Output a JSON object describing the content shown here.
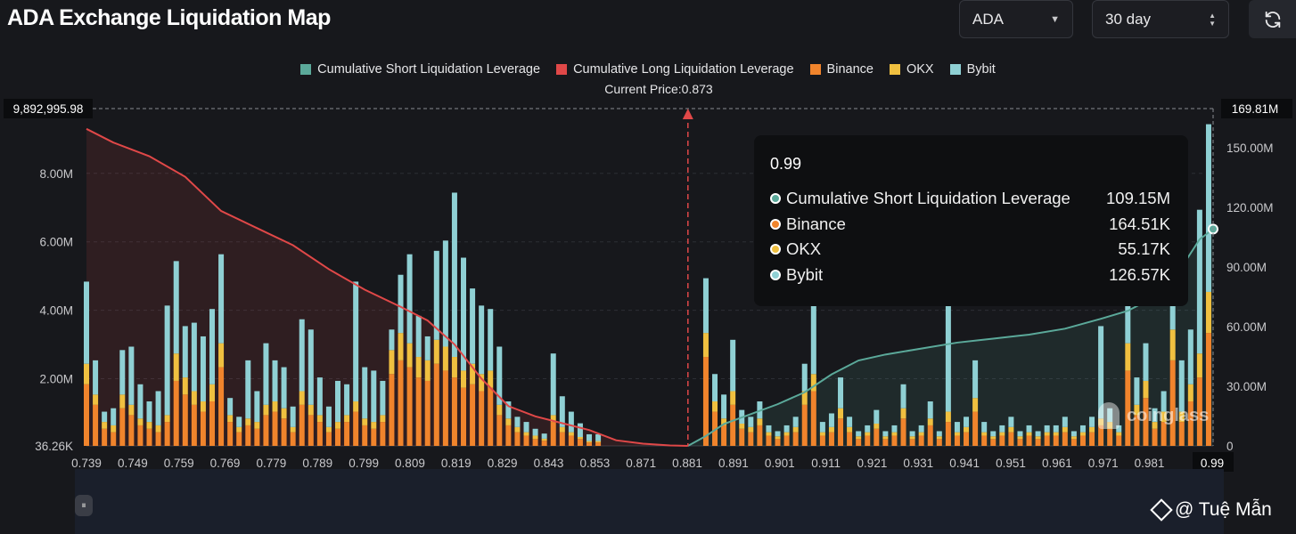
{
  "header": {
    "title": "ADA Exchange Liquidation Map",
    "coin_select": "ADA",
    "range_select": "30 day"
  },
  "credit": "@ Tuệ Mẫn",
  "watermark": "coinglass",
  "colors": {
    "short_cumulative": "#5ba99a",
    "long_cumulative": "#e04848",
    "binance": "#f0842c",
    "okx": "#f0c040",
    "bybit": "#8fd0d4"
  },
  "tooltip": {
    "title": "0.99",
    "rows": [
      {
        "label": "Cumulative Short Liquidation Leverage",
        "value": "109.15M",
        "color": "#5ba99a"
      },
      {
        "label": "Binance",
        "value": "164.51K",
        "color": "#f0842c"
      },
      {
        "label": "OKX",
        "value": "55.17K",
        "color": "#f0c040"
      },
      {
        "label": "Bybit",
        "value": "126.57K",
        "color": "#8fd0d4"
      }
    ]
  },
  "chart_data": {
    "type": "bar",
    "current_price_label": "Current Price:0.873",
    "current_price": 0.873,
    "legend": [
      {
        "name": "Cumulative Short Liquidation Leverage",
        "color": "#5ba99a"
      },
      {
        "name": "Cumulative Long Liquidation Leverage",
        "color": "#e04848"
      },
      {
        "name": "Binance",
        "color": "#f0842c"
      },
      {
        "name": "OKX",
        "color": "#f0c040"
      },
      {
        "name": "Bybit",
        "color": "#8fd0d4"
      }
    ],
    "x_tick_labels": [
      "0.739",
      "0.749",
      "0.759",
      "0.769",
      "0.779",
      "0.789",
      "0.799",
      "0.809",
      "0.819",
      "0.829",
      "0.843",
      "0.853",
      "0.871",
      "0.881",
      "0.891",
      "0.901",
      "0.911",
      "0.921",
      "0.931",
      "0.941",
      "0.951",
      "0.961",
      "0.971",
      "0.981"
    ],
    "x_end_label": "0.99",
    "x_range": [
      0.739,
      0.99
    ],
    "y_left_ticks": [
      "36.26K",
      "2.00M",
      "4.00M",
      "6.00M",
      "8.00M"
    ],
    "y_left_tick_values": [
      36260,
      2000000,
      4000000,
      6000000,
      8000000
    ],
    "y_left_max_label": "9,892,995.98",
    "y_left_range": [
      36260,
      9892995.98
    ],
    "y_right_ticks": [
      "0",
      "30.00M",
      "60.00M",
      "90.00M",
      "120.00M",
      "150.00M"
    ],
    "y_right_tick_values": [
      0,
      30000000,
      60000000,
      90000000,
      120000000,
      150000000
    ],
    "y_right_max_label": "169.81M",
    "y_right_range": [
      0,
      169810000
    ],
    "bars": {
      "x": [
        0.739,
        0.741,
        0.743,
        0.745,
        0.747,
        0.749,
        0.751,
        0.753,
        0.755,
        0.757,
        0.759,
        0.761,
        0.763,
        0.765,
        0.767,
        0.769,
        0.771,
        0.773,
        0.775,
        0.777,
        0.779,
        0.781,
        0.783,
        0.785,
        0.787,
        0.789,
        0.791,
        0.793,
        0.795,
        0.797,
        0.799,
        0.801,
        0.803,
        0.805,
        0.807,
        0.809,
        0.811,
        0.813,
        0.815,
        0.817,
        0.819,
        0.821,
        0.823,
        0.825,
        0.827,
        0.829,
        0.831,
        0.833,
        0.835,
        0.837,
        0.839,
        0.841,
        0.843,
        0.845,
        0.847,
        0.849,
        0.851,
        0.853,
        0.877,
        0.879,
        0.881,
        0.883,
        0.885,
        0.887,
        0.889,
        0.891,
        0.893,
        0.895,
        0.897,
        0.899,
        0.901,
        0.903,
        0.905,
        0.907,
        0.909,
        0.911,
        0.913,
        0.915,
        0.917,
        0.919,
        0.921,
        0.923,
        0.925,
        0.927,
        0.929,
        0.931,
        0.933,
        0.935,
        0.937,
        0.939,
        0.941,
        0.943,
        0.945,
        0.947,
        0.949,
        0.951,
        0.953,
        0.955,
        0.957,
        0.959,
        0.961,
        0.963,
        0.965,
        0.967,
        0.969,
        0.971,
        0.973,
        0.975,
        0.977,
        0.979,
        0.981,
        0.983,
        0.985,
        0.987,
        0.989
      ],
      "binance": [
        1800000,
        1200000,
        500000,
        400000,
        1100000,
        900000,
        600000,
        500000,
        400000,
        700000,
        1900000,
        1500000,
        1200000,
        1000000,
        1300000,
        2300000,
        700000,
        400000,
        600000,
        500000,
        900000,
        1000000,
        800000,
        400000,
        1200000,
        900000,
        700000,
        400000,
        500000,
        700000,
        1000000,
        600000,
        500000,
        700000,
        2100000,
        2500000,
        2300000,
        2000000,
        1900000,
        2400000,
        2200000,
        2000000,
        1700000,
        1800000,
        1600000,
        1700000,
        900000,
        600000,
        400000,
        300000,
        200000,
        150000,
        700000,
        400000,
        300000,
        200000,
        100000,
        100000,
        2600000,
        1000000,
        600000,
        1200000,
        500000,
        400000,
        600000,
        300000,
        200000,
        300000,
        400000,
        1200000,
        1600000,
        300000,
        400000,
        800000,
        400000,
        200000,
        300000,
        500000,
        200000,
        300000,
        800000,
        200000,
        300000,
        600000,
        200000,
        700000,
        300000,
        400000,
        1000000,
        300000,
        200000,
        300000,
        400000,
        200000,
        300000,
        200000,
        300000,
        300000,
        400000,
        200000,
        300000,
        400000,
        600000,
        500000,
        300000,
        2200000,
        900000,
        1400000,
        500000,
        700000,
        2500000,
        700000,
        1300000,
        2000000,
        3300000
      ],
      "okx": [
        600000,
        300000,
        200000,
        200000,
        400000,
        300000,
        200000,
        200000,
        200000,
        200000,
        800000,
        500000,
        400000,
        300000,
        500000,
        700000,
        200000,
        150000,
        200000,
        200000,
        300000,
        300000,
        300000,
        150000,
        400000,
        300000,
        200000,
        150000,
        200000,
        200000,
        300000,
        200000,
        200000,
        200000,
        700000,
        800000,
        700000,
        600000,
        600000,
        700000,
        700000,
        600000,
        500000,
        600000,
        500000,
        500000,
        300000,
        200000,
        150000,
        100000,
        100000,
        60000,
        200000,
        150000,
        100000,
        60000,
        40000,
        40000,
        700000,
        300000,
        200000,
        400000,
        150000,
        150000,
        200000,
        100000,
        80000,
        100000,
        150000,
        400000,
        500000,
        100000,
        150000,
        300000,
        150000,
        80000,
        100000,
        150000,
        80000,
        100000,
        300000,
        80000,
        100000,
        200000,
        80000,
        300000,
        100000,
        150000,
        400000,
        100000,
        80000,
        100000,
        150000,
        80000,
        100000,
        80000,
        100000,
        100000,
        150000,
        80000,
        100000,
        150000,
        200000,
        200000,
        100000,
        800000,
        300000,
        500000,
        200000,
        300000,
        900000,
        300000,
        500000,
        700000,
        1200000
      ],
      "bybit": [
        2400000,
        1000000,
        300000,
        500000,
        1300000,
        1700000,
        1000000,
        600000,
        1000000,
        3200000,
        2700000,
        1500000,
        2000000,
        1900000,
        2200000,
        2600000,
        500000,
        300000,
        1700000,
        900000,
        1800000,
        1200000,
        1200000,
        600000,
        2100000,
        2200000,
        1100000,
        600000,
        1200000,
        900000,
        3500000,
        1500000,
        1500000,
        1000000,
        600000,
        1700000,
        2600000,
        1200000,
        700000,
        2600000,
        3100000,
        4800000,
        3300000,
        2200000,
        2000000,
        1800000,
        1700000,
        500000,
        300000,
        300000,
        200000,
        150000,
        1800000,
        900000,
        600000,
        400000,
        200000,
        200000,
        1600000,
        800000,
        700000,
        1500000,
        400000,
        300000,
        500000,
        200000,
        150000,
        200000,
        300000,
        800000,
        2600000,
        300000,
        400000,
        900000,
        300000,
        150000,
        200000,
        400000,
        150000,
        200000,
        700000,
        150000,
        200000,
        500000,
        150000,
        3200000,
        300000,
        300000,
        1100000,
        300000,
        150000,
        200000,
        300000,
        150000,
        200000,
        150000,
        200000,
        200000,
        300000,
        150000,
        200000,
        300000,
        2700000,
        400000,
        200000,
        1700000,
        800000,
        1100000,
        400000,
        600000,
        2000000,
        1500000,
        1600000,
        4200000,
        4900000
      ]
    },
    "long_cumulative": {
      "x": [
        0.739,
        0.745,
        0.753,
        0.761,
        0.769,
        0.777,
        0.785,
        0.793,
        0.801,
        0.809,
        0.815,
        0.821,
        0.827,
        0.833,
        0.839,
        0.845,
        0.851,
        0.857,
        0.863,
        0.869,
        0.873
      ],
      "y": [
        9300000,
        8900000,
        8500000,
        7900000,
        6900000,
        6400000,
        5900000,
        5200000,
        4600000,
        4100000,
        3700000,
        3000000,
        2000000,
        1200000,
        900000,
        700000,
        500000,
        200000,
        100000,
        50000,
        0
      ]
    },
    "short_cumulative": {
      "x": [
        0.873,
        0.877,
        0.881,
        0.887,
        0.893,
        0.899,
        0.905,
        0.911,
        0.917,
        0.925,
        0.933,
        0.941,
        0.949,
        0.957,
        0.965,
        0.971,
        0.977,
        0.983,
        0.987,
        0.99
      ],
      "y": [
        0,
        5000000,
        11000000,
        16000000,
        21000000,
        27000000,
        36000000,
        43000000,
        46000000,
        49000000,
        52000000,
        54000000,
        56000000,
        59000000,
        64000000,
        68000000,
        75000000,
        90000000,
        104000000,
        109150000
      ]
    }
  }
}
